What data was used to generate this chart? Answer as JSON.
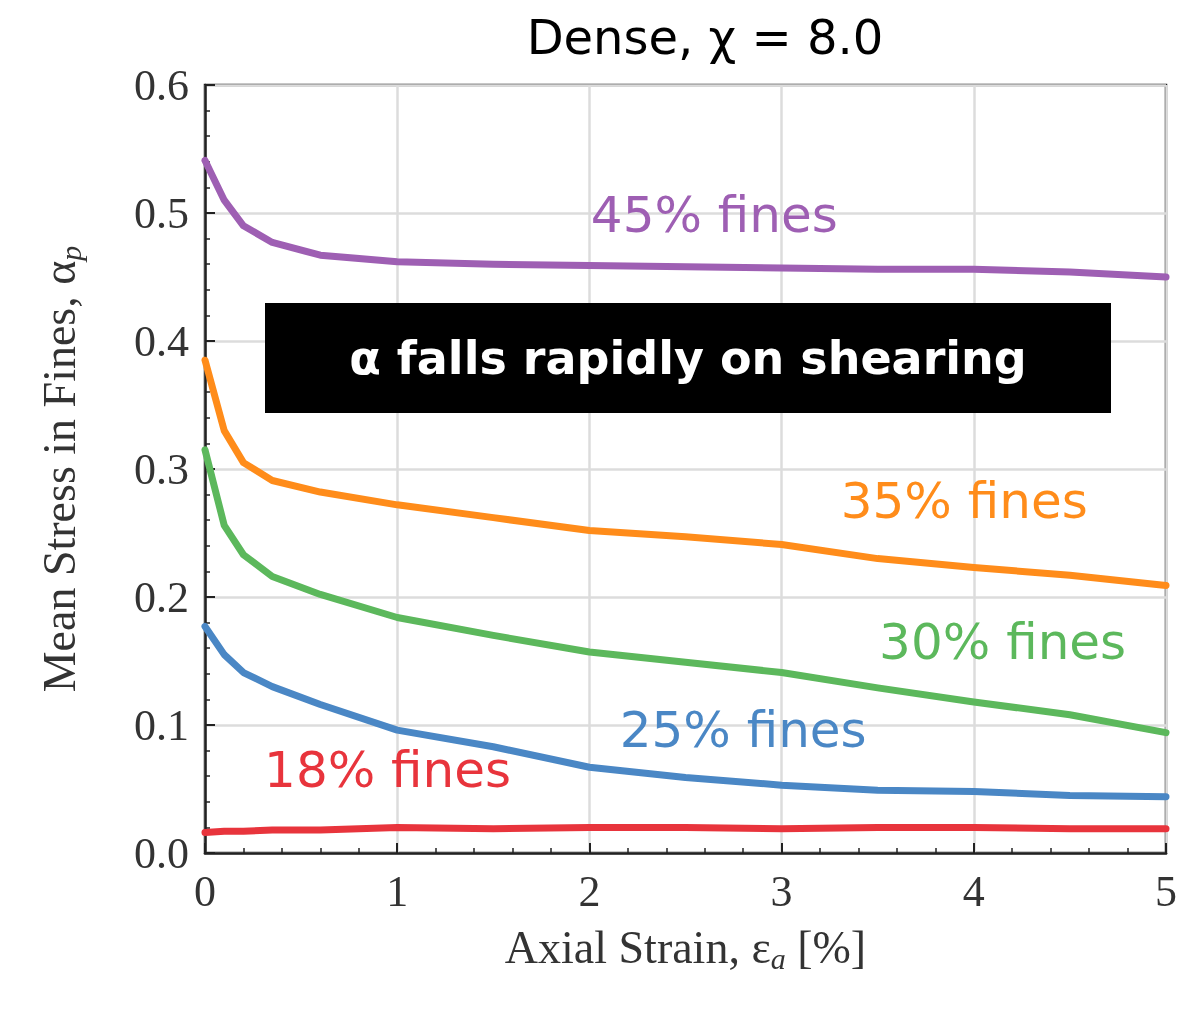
{
  "chart_data": {
    "type": "line",
    "title": "Dense, χ = 8.0",
    "xlabel": "Axial Strain, ε$_{a}$ [%]",
    "ylabel": "Mean Stress in Fines, α$_{p}$",
    "annotations": [
      "α falls rapidly on shearing"
    ],
    "xlim": [
      0,
      5
    ],
    "xticks": [
      0,
      1,
      2,
      3,
      4,
      5
    ],
    "ylim": [
      0,
      0.6
    ],
    "yticks": [
      {
        "value": 0,
        "label": "0.0"
      },
      0.1,
      0.2,
      0.3,
      0.4,
      0.5,
      0.6
    ],
    "grid": true,
    "marker": "none",
    "line_style": "solid",
    "x": [
      0,
      0.1,
      0.2,
      0.35,
      0.6,
      1,
      1.5,
      2,
      2.5,
      3,
      3.5,
      4,
      4.5,
      5
    ],
    "series": [
      {
        "name": "45% fines",
        "color": "#9e5fb3",
        "values": [
          0.541,
          0.51,
          0.49,
          0.477,
          0.467,
          0.462,
          0.46,
          0.459,
          0.458,
          0.457,
          0.456,
          0.456,
          0.454,
          0.45
        ]
      },
      {
        "name": "35% fines",
        "color": "#ff8c1a",
        "values": [
          0.385,
          0.33,
          0.305,
          0.291,
          0.282,
          0.272,
          0.262,
          0.252,
          0.247,
          0.241,
          0.23,
          0.223,
          0.217,
          0.209
        ]
      },
      {
        "name": "30% fines",
        "color": "#5cb85c",
        "values": [
          0.315,
          0.256,
          0.233,
          0.216,
          0.202,
          0.184,
          0.17,
          0.157,
          0.149,
          0.141,
          0.129,
          0.118,
          0.108,
          0.094
        ]
      },
      {
        "name": "25% fines",
        "color": "#4a87c5",
        "values": [
          0.177,
          0.155,
          0.141,
          0.13,
          0.116,
          0.096,
          0.083,
          0.067,
          0.059,
          0.053,
          0.049,
          0.048,
          0.045,
          0.044
        ]
      },
      {
        "name": "18% fines",
        "color": "#e8343c",
        "values": [
          0.016,
          0.017,
          0.017,
          0.018,
          0.018,
          0.02,
          0.019,
          0.02,
          0.02,
          0.019,
          0.02,
          0.02,
          0.019,
          0.019
        ]
      }
    ]
  }
}
